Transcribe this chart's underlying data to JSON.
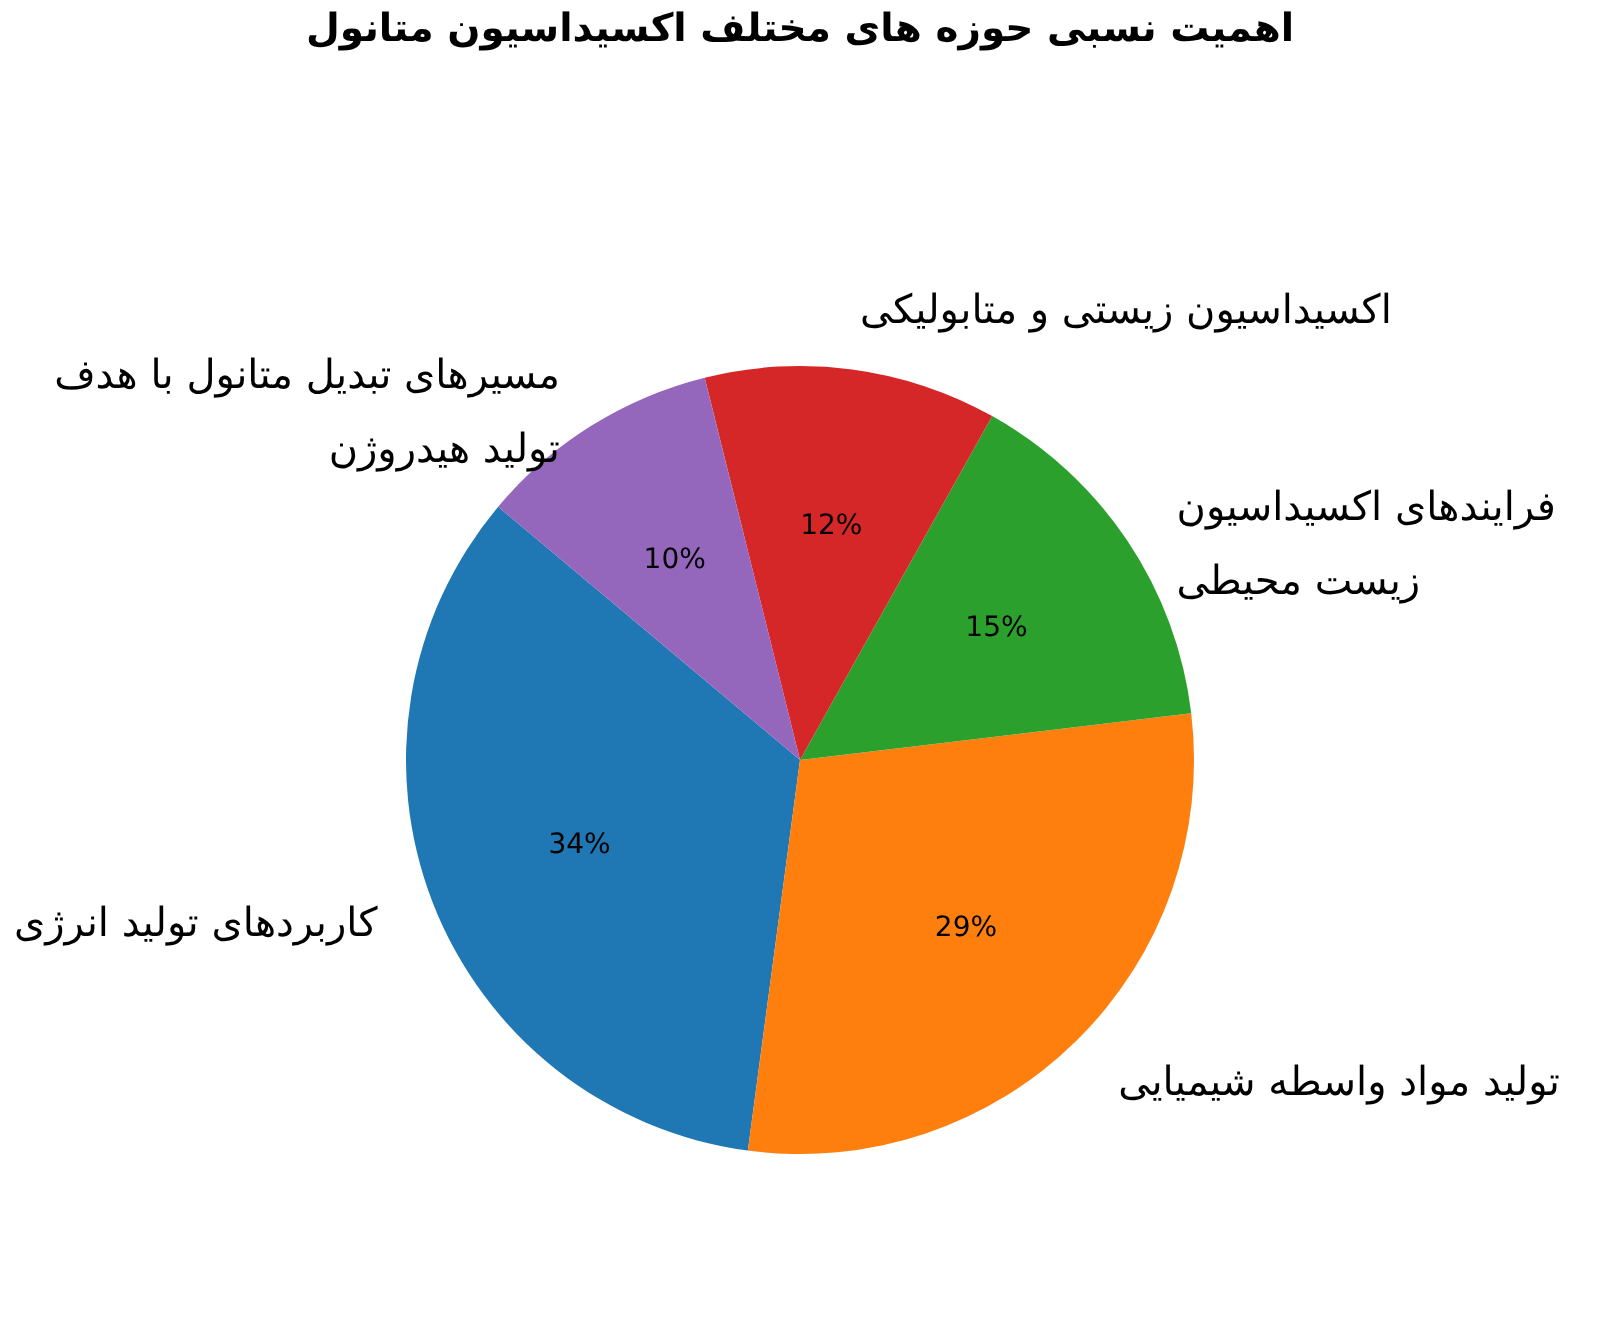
{
  "chart_data": {
    "type": "pie",
    "title": "اهمیت نسبی حوزه های مختلف اکسیداسیون متانول",
    "categories": [
      "کاربردهای تولید انرژی",
      "تولید مواد واسطه شیمیایی",
      "فرایندهای اکسیداسیون\nزیست محیطی",
      "اکسیداسیون زیستی و متابولیکی",
      "مسیرهای تبدیل متانول با هدف\nتولید هیدروژن"
    ],
    "values": [
      34,
      29,
      15,
      12,
      10
    ],
    "colors": [
      "#1f77b4",
      "#ff7f0e",
      "#2ca02c",
      "#d62728",
      "#9467bd"
    ],
    "value_labels": [
      "34%",
      "29%",
      "15%",
      "12%",
      "10%"
    ]
  }
}
